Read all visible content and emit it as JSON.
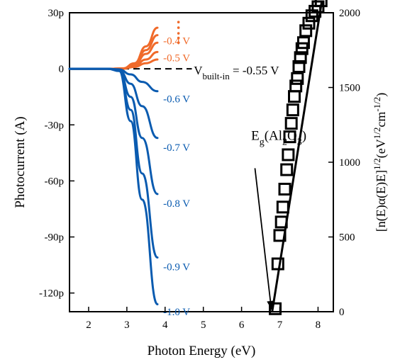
{
  "chart_data": {
    "type": "line",
    "xlabel": "Photon Energy (eV)",
    "ylabel_left": "Photocurrent (A)",
    "ylabel_right": "[n(E)α(E)E]1/2(eV1/2cm-1/2)",
    "xlim": [
      1.5,
      8.4
    ],
    "ylim_left": [
      -130,
      30
    ],
    "ylim_right": [
      0,
      2000
    ],
    "x_ticks": [
      2,
      3,
      4,
      5,
      6,
      7,
      8
    ],
    "x_tick_labels": [
      "2",
      "3",
      "4",
      "5",
      "6",
      "7",
      "8"
    ],
    "y_left_ticks": [
      30,
      0,
      -30,
      -60,
      -90,
      -120
    ],
    "y_left_tick_labels": [
      "30p",
      "0",
      "-30p",
      "-60p",
      "-90p",
      "-120p"
    ],
    "y_right_ticks": [
      2000,
      1500,
      1000,
      500,
      0
    ],
    "y_right_tick_labels": [
      "2000",
      "1500",
      "1000",
      "500",
      "0"
    ],
    "grid": false,
    "colors": {
      "negative_bias": "#0a5bb0",
      "positive_bias": "#f06a2a",
      "tauc": "#000000"
    },
    "photocurrent_series": [
      {
        "name": "-0.4 V",
        "color": "#f06a2a",
        "points": [
          [
            1.5,
            0
          ],
          [
            2.5,
            0
          ],
          [
            2.9,
            0.2
          ],
          [
            3.2,
            3
          ],
          [
            3.5,
            12
          ],
          [
            3.8,
            22
          ]
        ]
      },
      {
        "name": "-0.4 V",
        "color": "#f06a2a",
        "points": [
          [
            1.5,
            0
          ],
          [
            2.5,
            0
          ],
          [
            2.9,
            0.2
          ],
          [
            3.2,
            2.5
          ],
          [
            3.5,
            10
          ],
          [
            3.8,
            18
          ]
        ]
      },
      {
        "name": "-0.4 V",
        "color": "#f06a2a",
        "points": [
          [
            1.5,
            0
          ],
          [
            2.5,
            0
          ],
          [
            2.9,
            0.2
          ],
          [
            3.2,
            2
          ],
          [
            3.5,
            8
          ],
          [
            3.8,
            14
          ]
        ]
      },
      {
        "name": "-0.5 V",
        "color": "#f06a2a",
        "points": [
          [
            1.5,
            0
          ],
          [
            2.5,
            0
          ],
          [
            2.9,
            0.1
          ],
          [
            3.2,
            1.5
          ],
          [
            3.5,
            5
          ],
          [
            3.8,
            9
          ]
        ]
      },
      {
        "name": "-0.5 V",
        "color": "#f06a2a",
        "points": [
          [
            1.5,
            0
          ],
          [
            2.5,
            0
          ],
          [
            2.9,
            0.1
          ],
          [
            3.2,
            1
          ],
          [
            3.5,
            3
          ],
          [
            3.8,
            5
          ]
        ]
      },
      {
        "name": "-0.6 V",
        "color": "#0a5bb0",
        "points": [
          [
            1.5,
            0
          ],
          [
            2.5,
            0
          ],
          [
            2.8,
            -0.3
          ],
          [
            3.1,
            -3
          ],
          [
            3.4,
            -7
          ],
          [
            3.8,
            -12
          ]
        ]
      },
      {
        "name": "-0.7 V",
        "color": "#0a5bb0",
        "points": [
          [
            1.5,
            0
          ],
          [
            2.5,
            0
          ],
          [
            2.8,
            -0.5
          ],
          [
            3.1,
            -8
          ],
          [
            3.4,
            -20
          ],
          [
            3.8,
            -37
          ]
        ]
      },
      {
        "name": "-0.8 V",
        "color": "#0a5bb0",
        "points": [
          [
            1.5,
            0
          ],
          [
            2.5,
            0
          ],
          [
            2.8,
            -0.8
          ],
          [
            3.1,
            -15
          ],
          [
            3.4,
            -37
          ],
          [
            3.8,
            -67
          ]
        ]
      },
      {
        "name": "-0.9 V",
        "color": "#0a5bb0",
        "points": [
          [
            1.5,
            0
          ],
          [
            2.5,
            0
          ],
          [
            2.8,
            -1
          ],
          [
            3.1,
            -22
          ],
          [
            3.4,
            -56
          ],
          [
            3.8,
            -101
          ]
        ]
      },
      {
        "name": "-1.0 V",
        "color": "#0a5bb0",
        "points": [
          [
            1.5,
            0
          ],
          [
            2.5,
            0
          ],
          [
            2.8,
            -1.2
          ],
          [
            3.1,
            -28
          ],
          [
            3.4,
            -70
          ],
          [
            3.8,
            -126
          ]
        ]
      }
    ],
    "orange_dots": [
      [
        4.35,
        25
      ],
      [
        4.35,
        22
      ],
      [
        4.35,
        19
      ],
      [
        4.35,
        16.5
      ],
      [
        4.35,
        14
      ]
    ],
    "curve_labels": [
      {
        "text": "-0.4 V",
        "color": "#f06a2a",
        "x": 3.95,
        "y": 15
      },
      {
        "text": "-0.5 V",
        "color": "#f06a2a",
        "x": 3.95,
        "y": 6
      },
      {
        "text": "-0.6 V",
        "color": "#0a5bb0",
        "x": 3.95,
        "y": -16
      },
      {
        "text": "-0.7 V",
        "color": "#0a5bb0",
        "x": 3.95,
        "y": -42
      },
      {
        "text": "-0.8 V",
        "color": "#0a5bb0",
        "x": 3.95,
        "y": -72
      },
      {
        "text": "-0.9 V",
        "color": "#0a5bb0",
        "x": 3.95,
        "y": -106
      },
      {
        "text": "-1.0 V",
        "color": "#0a5bb0",
        "x": 3.95,
        "y": -130
      }
    ],
    "builtin_line": {
      "x_end": 4.7,
      "y": 0
    },
    "builtin_label": {
      "main": "V",
      "sub": "built-in",
      "value": " = -0.55 V",
      "x": 4.75,
      "y": 0
    },
    "tauc_series": {
      "name": "",
      "marker": "square",
      "points": [
        [
          6.88,
          20
        ],
        [
          6.95,
          320
        ],
        [
          7.0,
          510
        ],
        [
          7.04,
          600
        ],
        [
          7.08,
          700
        ],
        [
          7.13,
          820
        ],
        [
          7.18,
          950
        ],
        [
          7.22,
          1050
        ],
        [
          7.26,
          1170
        ],
        [
          7.3,
          1260
        ],
        [
          7.34,
          1350
        ],
        [
          7.38,
          1440
        ],
        [
          7.42,
          1510
        ],
        [
          7.46,
          1560
        ],
        [
          7.5,
          1640
        ],
        [
          7.54,
          1700
        ],
        [
          7.58,
          1760
        ],
        [
          7.62,
          1800
        ],
        [
          7.68,
          1880
        ],
        [
          7.76,
          1930
        ],
        [
          7.84,
          1980
        ],
        [
          7.92,
          2010
        ],
        [
          8.0,
          2040
        ],
        [
          8.08,
          2080
        ]
      ]
    },
    "tauc_fit": {
      "x1": 6.8,
      "y1": 0,
      "x2": 8.1,
      "y2": 2080
    },
    "eg_annotation": {
      "text_parts": [
        "E",
        "g",
        "(Al",
        "2",
        "O",
        "3",
        ")"
      ],
      "label_x": 6.25,
      "label_y": 1150,
      "arrow_from": [
        6.35,
        960
      ],
      "arrow_to": [
        6.78,
        15
      ]
    }
  }
}
